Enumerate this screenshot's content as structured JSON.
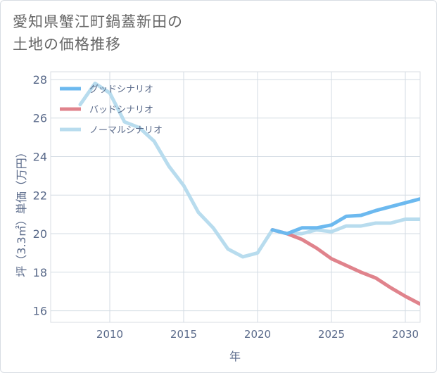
{
  "title_lines": [
    "愛知県蟹江町鍋蓋新田の",
    "土地の価格推移"
  ],
  "chart_data": {
    "type": "line",
    "title": "愛知県蟹江町鍋蓋新田の土地の価格推移",
    "xlabel": "年",
    "ylabel": "坪（3.3㎡）単価（万円）",
    "xlim": [
      2006,
      2031
    ],
    "ylim": [
      15.4,
      28.4
    ],
    "xticks": [
      2010,
      2015,
      2020,
      2025,
      2030
    ],
    "yticks": [
      16,
      18,
      20,
      22,
      24,
      26,
      28
    ],
    "grid": true,
    "legend_position": "top-left",
    "series": [
      {
        "name": "グッドシナリオ",
        "color": "#6cb9ef",
        "x": [
          2021,
          2022,
          2023,
          2024,
          2025,
          2026,
          2027,
          2028,
          2029,
          2030,
          2031
        ],
        "y": [
          20.2,
          20.0,
          20.3,
          20.3,
          20.45,
          20.9,
          20.95,
          21.2,
          21.4,
          21.6,
          21.8
        ]
      },
      {
        "name": "バッドシナリオ",
        "color": "#e0838c",
        "x": [
          2021,
          2022,
          2023,
          2024,
          2025,
          2026,
          2027,
          2028,
          2029,
          2030,
          2031
        ],
        "y": [
          20.2,
          20.0,
          19.7,
          19.25,
          18.7,
          18.35,
          18.0,
          17.7,
          17.2,
          16.75,
          16.35
        ]
      },
      {
        "name": "ノーマルシナリオ",
        "color": "#b8dcee",
        "x": [
          2008,
          2009,
          2010,
          2011,
          2012,
          2013,
          2014,
          2015,
          2016,
          2017,
          2018,
          2019,
          2020,
          2021,
          2022,
          2023,
          2024,
          2025,
          2026,
          2027,
          2028,
          2029,
          2030,
          2031
        ],
        "y": [
          26.7,
          27.8,
          27.3,
          25.8,
          25.5,
          24.8,
          23.5,
          22.5,
          21.1,
          20.3,
          19.2,
          18.8,
          19.0,
          20.2,
          20.0,
          20.0,
          20.2,
          20.1,
          20.4,
          20.4,
          20.55,
          20.55,
          20.75,
          20.75
        ]
      }
    ]
  }
}
